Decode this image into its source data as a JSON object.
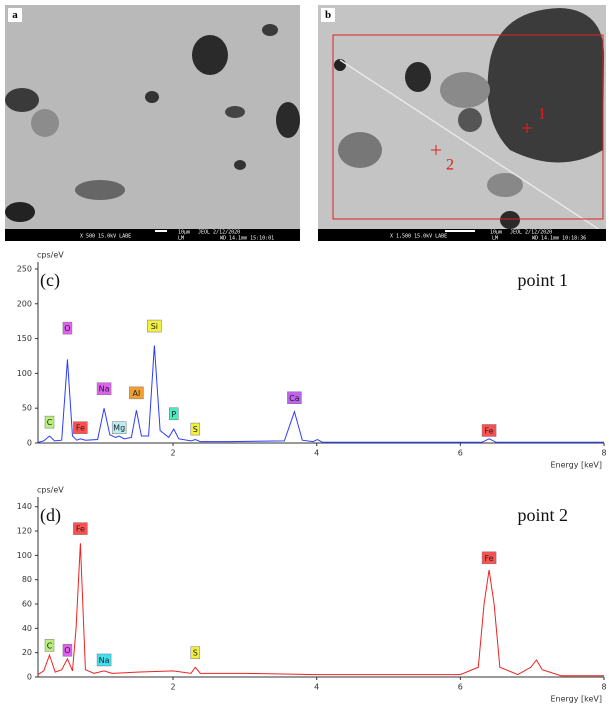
{
  "images": [
    {
      "label": "a",
      "info_left": "X 500   15.0kV LABE",
      "scale": "10µm",
      "info_right": "JEOL   2/12/2020",
      "info_mode": "LM",
      "info_wd": "WD 14.1mm 15:10:01"
    },
    {
      "label": "b",
      "info_left": "X 1,500   15.0kV LABE",
      "scale": "10µm",
      "info_right": "JEOL   2/12/2020",
      "info_mode": "LM",
      "info_wd": "WD 14.1mm 10:18:36",
      "points": [
        "1",
        "2"
      ]
    }
  ],
  "chart_data": [
    {
      "type": "line",
      "panel": "(c)",
      "title": "point 1",
      "y_label": "cps/eV",
      "x_label": "Energy [keV]",
      "color": "#2b3cff",
      "x": [
        0.12,
        0.2,
        0.28,
        0.35,
        0.45,
        0.53,
        0.6,
        0.66,
        0.71,
        0.78,
        0.95,
        1.04,
        1.12,
        1.2,
        1.25,
        1.32,
        1.42,
        1.49,
        1.56,
        1.66,
        1.74,
        1.82,
        1.94,
        2.01,
        2.08,
        2.25,
        2.31,
        2.38,
        2.8,
        3.55,
        3.69,
        3.8,
        3.95,
        4.01,
        4.08,
        5,
        6.3,
        6.4,
        6.5,
        7,
        8
      ],
      "values": [
        1,
        3,
        10,
        3,
        4,
        120,
        10,
        4,
        6,
        4,
        5,
        50,
        12,
        8,
        10,
        6,
        8,
        47,
        10,
        10,
        140,
        18,
        8,
        20,
        6,
        3,
        5,
        2,
        2,
        3,
        45,
        4,
        2,
        5,
        1,
        1,
        1,
        6,
        1,
        1,
        1
      ],
      "xlim": [
        0.12,
        8
      ],
      "ylim": [
        0,
        260
      ],
      "xticks": [
        2,
        4,
        6,
        8
      ],
      "yticks": [
        0,
        50,
        100,
        150,
        200,
        250
      ],
      "annotations": [
        {
          "text": "C",
          "x": 0.28,
          "y": 30,
          "color": "#b8f07a"
        },
        {
          "text": "O",
          "x": 0.53,
          "y": 165,
          "color": "#e060f0"
        },
        {
          "text": "Fe",
          "x": 0.71,
          "y": 22,
          "color": "#ff5050"
        },
        {
          "text": "Na",
          "x": 1.04,
          "y": 78,
          "color": "#e060f0"
        },
        {
          "text": "Mg",
          "x": 1.25,
          "y": 22,
          "color": "#b8eef2"
        },
        {
          "text": "Al",
          "x": 1.49,
          "y": 72,
          "color": "#f0a030"
        },
        {
          "text": "Si",
          "x": 1.74,
          "y": 168,
          "color": "#f0f040"
        },
        {
          "text": "P",
          "x": 2.01,
          "y": 42,
          "color": "#40f0c0"
        },
        {
          "text": "S",
          "x": 2.31,
          "y": 20,
          "color": "#f0f040"
        },
        {
          "text": "Ca",
          "x": 3.69,
          "y": 65,
          "color": "#c060f0"
        },
        {
          "text": "Fe",
          "x": 6.4,
          "y": 18,
          "color": "#ff5050"
        }
      ]
    },
    {
      "type": "line",
      "panel": "(d)",
      "title": "point 2",
      "y_label": "cps/eV",
      "x_label": "Energy [keV]",
      "color": "#ee2222",
      "x": [
        0.12,
        0.2,
        0.28,
        0.36,
        0.45,
        0.53,
        0.6,
        0.65,
        0.71,
        0.78,
        0.9,
        1.04,
        1.15,
        1.5,
        2.0,
        2.25,
        2.31,
        2.38,
        3,
        4,
        5,
        6.0,
        6.25,
        6.33,
        6.4,
        6.47,
        6.55,
        6.8,
        6.98,
        7.06,
        7.14,
        7.4,
        8
      ],
      "values": [
        2,
        5,
        18,
        4,
        6,
        15,
        5,
        40,
        110,
        6,
        3,
        5,
        3,
        4,
        5,
        3,
        8,
        3,
        3,
        2,
        2,
        2,
        8,
        60,
        88,
        60,
        8,
        2,
        8,
        14,
        6,
        1,
        1
      ],
      "xlim": [
        0.12,
        8
      ],
      "ylim": [
        0,
        148
      ],
      "xticks": [
        2,
        4,
        6,
        8
      ],
      "yticks": [
        0,
        20,
        40,
        60,
        80,
        100,
        120,
        140
      ],
      "annotations": [
        {
          "text": "C",
          "x": 0.28,
          "y": 26,
          "color": "#b8f07a"
        },
        {
          "text": "O",
          "x": 0.53,
          "y": 22,
          "color": "#e060f0"
        },
        {
          "text": "Fe",
          "x": 0.71,
          "y": 122,
          "color": "#ff5050"
        },
        {
          "text": "Na",
          "x": 1.04,
          "y": 14,
          "color": "#40e0f0"
        },
        {
          "text": "S",
          "x": 2.31,
          "y": 20,
          "color": "#f0f040"
        },
        {
          "text": "Fe",
          "x": 6.4,
          "y": 98,
          "color": "#ff5050"
        }
      ]
    }
  ]
}
